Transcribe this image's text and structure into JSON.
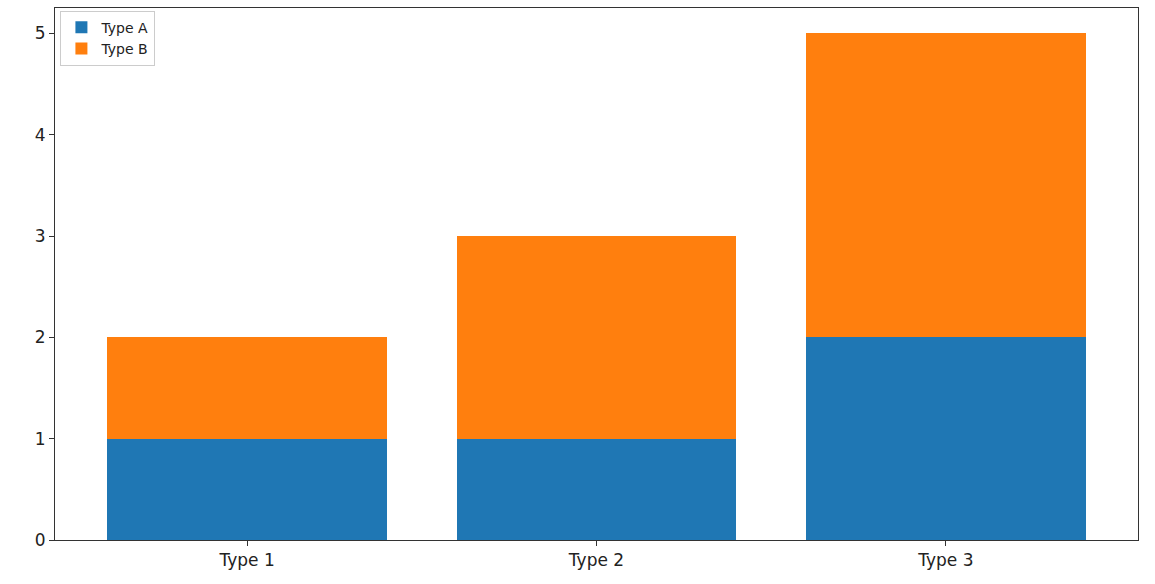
{
  "chart_data": {
    "type": "bar",
    "stacked": true,
    "categories": [
      "Type 1",
      "Type 2",
      "Type 3"
    ],
    "series": [
      {
        "name": "Type A",
        "color": "#1f77b4",
        "values": [
          1,
          1,
          2
        ]
      },
      {
        "name": "Type B",
        "color": "#ff7f0e",
        "values": [
          1,
          2,
          3
        ]
      }
    ],
    "ylim": [
      0,
      5.25
    ],
    "yticks": [
      0,
      1,
      2,
      3,
      4,
      5
    ],
    "grid": false,
    "legend": "upper left"
  }
}
